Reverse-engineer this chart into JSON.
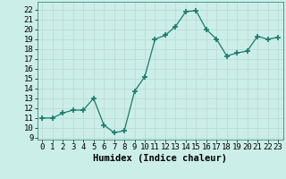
{
  "x": [
    0,
    1,
    2,
    3,
    4,
    5,
    6,
    7,
    8,
    9,
    10,
    11,
    12,
    13,
    14,
    15,
    16,
    17,
    18,
    19,
    20,
    21,
    22,
    23
  ],
  "y": [
    11,
    11,
    11.5,
    11.8,
    11.8,
    13,
    10.3,
    9.5,
    9.7,
    13.7,
    15.2,
    19,
    19.4,
    20.3,
    21.8,
    21.9,
    20,
    19,
    17.3,
    17.6,
    17.8,
    19.3,
    19,
    19.2
  ],
  "line_color": "#1a7a6e",
  "marker": "+",
  "marker_size": 4,
  "bg_color": "#cceee8",
  "grid_color": "#c0ddd8",
  "xlabel": "Humidex (Indice chaleur)",
  "xlabel_fontsize": 7.5,
  "ylabel_ticks": [
    9,
    10,
    11,
    12,
    13,
    14,
    15,
    16,
    17,
    18,
    19,
    20,
    21,
    22
  ],
  "ylim": [
    8.8,
    22.8
  ],
  "xlim": [
    -0.5,
    23.5
  ],
  "tick_fontsize": 6.5
}
